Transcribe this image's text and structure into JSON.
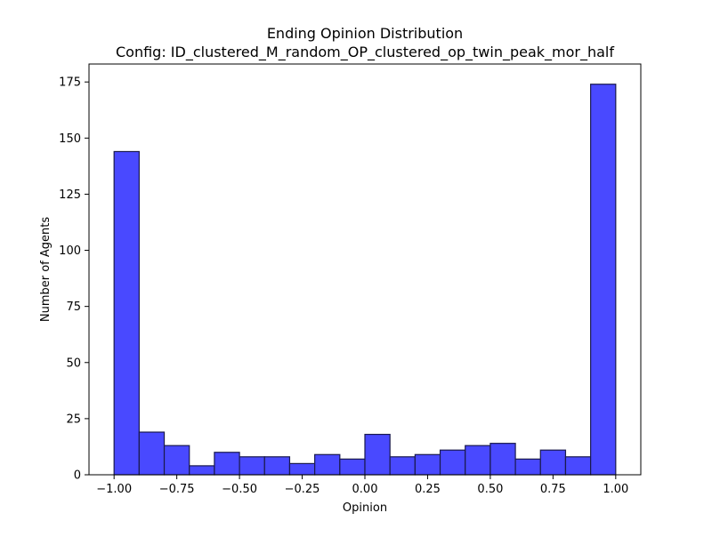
{
  "chart_data": {
    "type": "bar",
    "title": "Ending Opinion Distribution",
    "subtitle": "Config: ID_clustered_M_random_OP_clustered_op_twin_peak_mor_half",
    "xlabel": "Opinion",
    "ylabel": "Number of Agents",
    "xlim": [
      -1.1,
      1.1
    ],
    "ylim": [
      0,
      183
    ],
    "grid": false,
    "bin_edges": [
      -1.0,
      -0.9,
      -0.8,
      -0.7,
      -0.6,
      -0.5,
      -0.4,
      -0.3,
      -0.2,
      -0.1,
      0.0,
      0.1,
      0.2,
      0.3,
      0.4,
      0.5,
      0.6,
      0.7,
      0.8,
      0.9,
      1.0
    ],
    "values": [
      144,
      19,
      13,
      4,
      10,
      8,
      8,
      5,
      9,
      7,
      18,
      8,
      9,
      11,
      13,
      14,
      7,
      11,
      8,
      174
    ],
    "x_ticks": [
      {
        "value": -1.0,
        "label": "−1.00"
      },
      {
        "value": -0.75,
        "label": "−0.75"
      },
      {
        "value": -0.5,
        "label": "−0.50"
      },
      {
        "value": -0.25,
        "label": "−0.25"
      },
      {
        "value": 0.0,
        "label": "0.00"
      },
      {
        "value": 0.25,
        "label": "0.25"
      },
      {
        "value": 0.5,
        "label": "0.50"
      },
      {
        "value": 0.75,
        "label": "0.75"
      },
      {
        "value": 1.0,
        "label": "1.00"
      }
    ],
    "y_ticks": [
      {
        "value": 0,
        "label": "0"
      },
      {
        "value": 25,
        "label": "25"
      },
      {
        "value": 50,
        "label": "50"
      },
      {
        "value": 75,
        "label": "75"
      },
      {
        "value": 100,
        "label": "100"
      },
      {
        "value": 125,
        "label": "125"
      },
      {
        "value": 150,
        "label": "150"
      },
      {
        "value": 175,
        "label": "175"
      }
    ],
    "colors": {
      "bar_fill": "#4949ff",
      "bar_edge": "#1a1a4d",
      "axes": "#000000"
    }
  }
}
